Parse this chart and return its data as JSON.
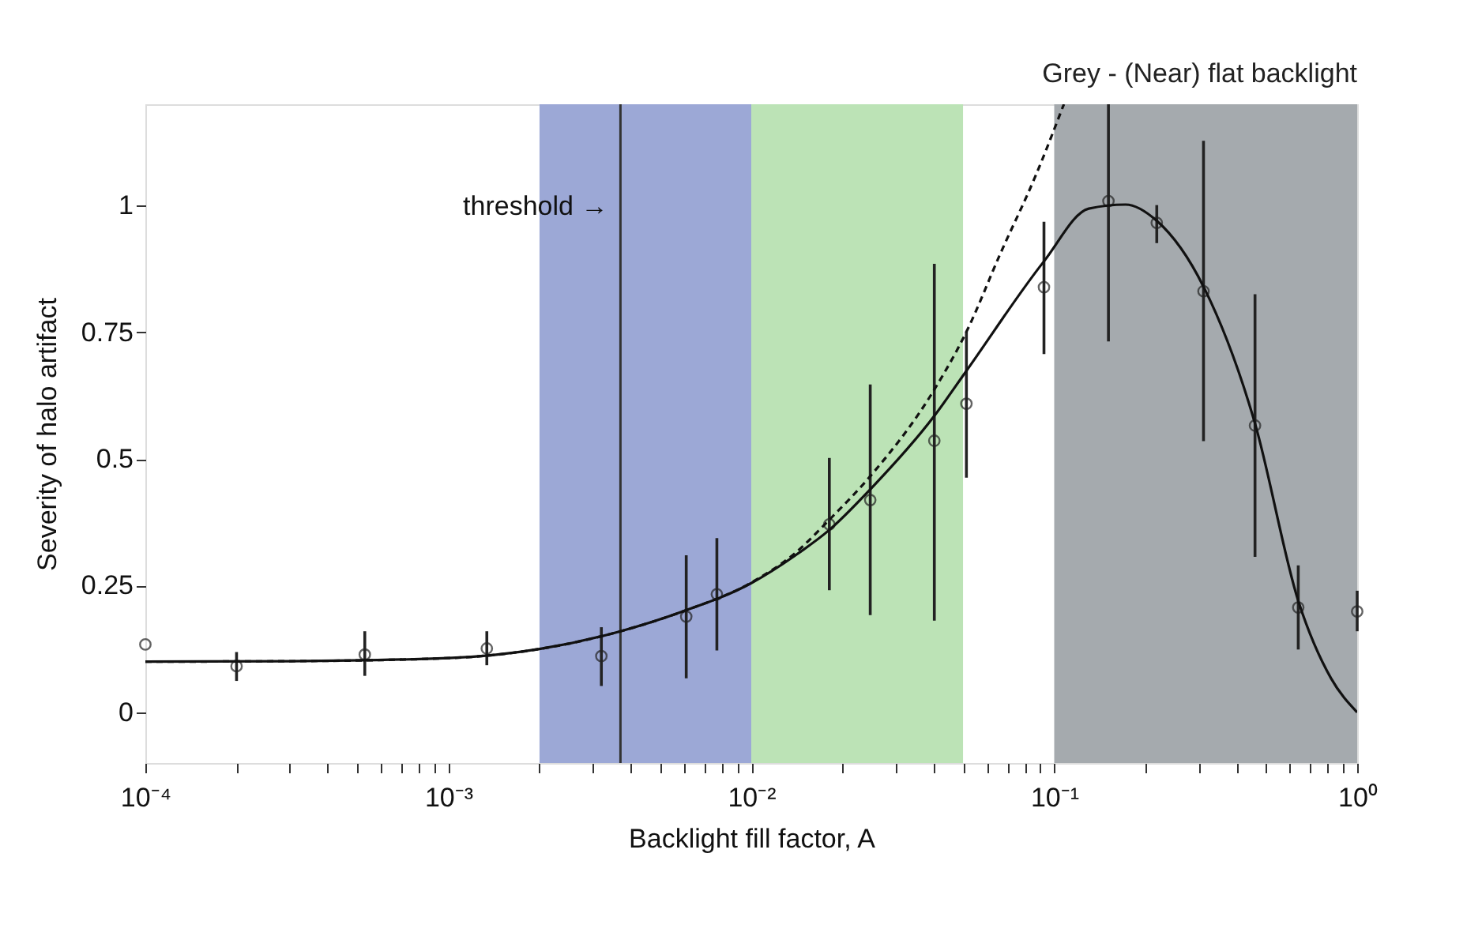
{
  "chart_data": {
    "type": "scatter",
    "xlabel": "Backlight fill factor, A",
    "ylabel": "Severity of halo artifact",
    "log": "x",
    "grid": false,
    "marker": "circle",
    "xlim": [
      0.0001,
      1
    ],
    "ylim": [
      -0.1,
      1.2
    ],
    "xticks": [
      {
        "value": 0.0001,
        "label": "10⁻⁴"
      },
      {
        "value": 0.0002,
        "label": null
      },
      {
        "value": 0.0003,
        "label": null
      },
      {
        "value": 0.0004,
        "label": null
      },
      {
        "value": 0.0005,
        "label": null
      },
      {
        "value": 0.0006,
        "label": null
      },
      {
        "value": 0.0007,
        "label": null
      },
      {
        "value": 0.0008,
        "label": null
      },
      {
        "value": 0.0009,
        "label": null
      },
      {
        "value": 0.001,
        "label": "10⁻³"
      },
      {
        "value": 0.002,
        "label": null
      },
      {
        "value": 0.003,
        "label": null
      },
      {
        "value": 0.004,
        "label": null
      },
      {
        "value": 0.005,
        "label": null
      },
      {
        "value": 0.006,
        "label": null
      },
      {
        "value": 0.007,
        "label": null
      },
      {
        "value": 0.008,
        "label": null
      },
      {
        "value": 0.009,
        "label": null
      },
      {
        "value": 0.01,
        "label": "10⁻²"
      },
      {
        "value": 0.02,
        "label": null
      },
      {
        "value": 0.03,
        "label": null
      },
      {
        "value": 0.04,
        "label": null
      },
      {
        "value": 0.05,
        "label": null
      },
      {
        "value": 0.06,
        "label": null
      },
      {
        "value": 0.07,
        "label": null
      },
      {
        "value": 0.08,
        "label": null
      },
      {
        "value": 0.09,
        "label": null
      },
      {
        "value": 0.1,
        "label": "10⁻¹"
      },
      {
        "value": 0.2,
        "label": null
      },
      {
        "value": 0.3,
        "label": null
      },
      {
        "value": 0.4,
        "label": null
      },
      {
        "value": 0.5,
        "label": null
      },
      {
        "value": 0.6,
        "label": null
      },
      {
        "value": 0.7,
        "label": null
      },
      {
        "value": 0.8,
        "label": null
      },
      {
        "value": 0.9,
        "label": null
      },
      {
        "value": 1,
        "label": "10⁰"
      }
    ],
    "yticks": [
      {
        "value": 0,
        "label": "0"
      },
      {
        "value": 0.25,
        "label": "0.25"
      },
      {
        "value": 0.5,
        "label": "0.5"
      },
      {
        "value": 0.75,
        "label": "0.75"
      },
      {
        "value": 1,
        "label": "1"
      }
    ],
    "bands": [
      {
        "axis": "x",
        "from": 0.002,
        "to": 0.01,
        "color": "#9ca8d6"
      },
      {
        "axis": "x",
        "from": 0.01,
        "to": 0.05,
        "color": "#bce3b6"
      },
      {
        "axis": "x",
        "from": 0.1,
        "to": 1,
        "color": "#a5aaae",
        "label": "Grey - (Near) flat backlight"
      }
    ],
    "ref_lines": [
      {
        "axis": "x",
        "value": 0.0037,
        "label": "threshold →",
        "color": "#333333",
        "line_style": "solid"
      }
    ],
    "series": [
      {
        "color": "#222222",
        "x": [
          0.0001,
          0.0002,
          0.00053,
          0.00134,
          0.0032,
          0.0061,
          0.0077,
          0.0181,
          0.0247,
          0.0402,
          0.0513,
          0.0925,
          0.151,
          0.218,
          0.311,
          0.46,
          0.639,
          1.0
        ],
        "values": [
          0.134,
          0.091,
          0.114,
          0.126,
          0.111,
          0.189,
          0.233,
          0.371,
          0.419,
          0.536,
          0.609,
          0.839,
          1.009,
          0.966,
          0.831,
          0.566,
          0.207,
          0.199
        ],
        "errors": [
          null,
          [
            0.062,
            0.119
          ],
          [
            0.072,
            0.16
          ],
          [
            0.093,
            0.16
          ],
          [
            0.052,
            0.168
          ],
          [
            0.067,
            0.31
          ],
          [
            0.122,
            0.344
          ],
          [
            0.241,
            0.502
          ],
          [
            0.192,
            0.647
          ],
          [
            0.181,
            0.885
          ],
          [
            0.463,
            0.751
          ],
          [
            0.707,
            0.968
          ],
          [
            0.732,
            1.2
          ],
          [
            0.926,
            1.001
          ],
          [
            0.535,
            1.128
          ],
          [
            0.307,
            0.825
          ],
          [
            0.124,
            0.29
          ],
          [
            0.16,
            0.24
          ]
        ]
      },
      {
        "type": "line",
        "color": "#111111",
        "line_style": "solid",
        "marker": "none",
        "x": [
          0.0001,
          0.0003,
          0.001,
          0.002,
          0.0037,
          0.006,
          0.01,
          0.014,
          0.0181,
          0.0247,
          0.0402,
          0.0513,
          0.0925,
          0.13,
          0.172,
          0.218,
          0.311,
          0.46,
          0.639,
          0.82,
          1.0
        ],
        "values": [
          0.1,
          0.101,
          0.107,
          0.125,
          0.16,
          0.2,
          0.255,
          0.31,
          0.36,
          0.44,
          0.585,
          0.674,
          0.89,
          0.994,
          1.002,
          0.97,
          0.84,
          0.57,
          0.22,
          0.067,
          0.0
        ]
      },
      {
        "type": "line",
        "color": "#111111",
        "line_style": "dashed",
        "marker": "none",
        "x": [
          0.0001,
          0.0003,
          0.001,
          0.002,
          0.0037,
          0.006,
          0.01,
          0.014,
          0.0181,
          0.0247,
          0.0402,
          0.0513,
          0.0665,
          0.0871,
          0.1076
        ],
        "values": [
          0.1,
          0.101,
          0.107,
          0.125,
          0.16,
          0.2,
          0.256,
          0.315,
          0.38,
          0.466,
          0.637,
          0.751,
          0.906,
          1.061,
          1.2
        ]
      }
    ]
  }
}
